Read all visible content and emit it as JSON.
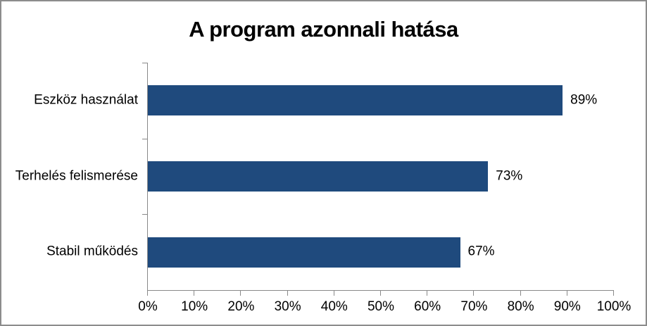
{
  "chart_data": {
    "type": "bar",
    "orientation": "horizontal",
    "title": "A program azonnali hatása",
    "categories": [
      "Eszköz használat",
      "Terhelés felismerése",
      "Stabil működés"
    ],
    "values": [
      89,
      73,
      67
    ],
    "value_labels": [
      "89%",
      "73%",
      "67%"
    ],
    "x_tick_labels": [
      "0%",
      "10%",
      "20%",
      "30%",
      "40%",
      "50%",
      "60%",
      "70%",
      "80%",
      "90%",
      "100%"
    ],
    "xlim": [
      0,
      100
    ],
    "x_tick_step": 10,
    "grid": false,
    "legend": false,
    "bar_color": "#1f4a7d",
    "axis_color": "#898989",
    "frame_color": "#8c8c8c",
    "title_color": "#000000",
    "label_color": "#000000"
  }
}
